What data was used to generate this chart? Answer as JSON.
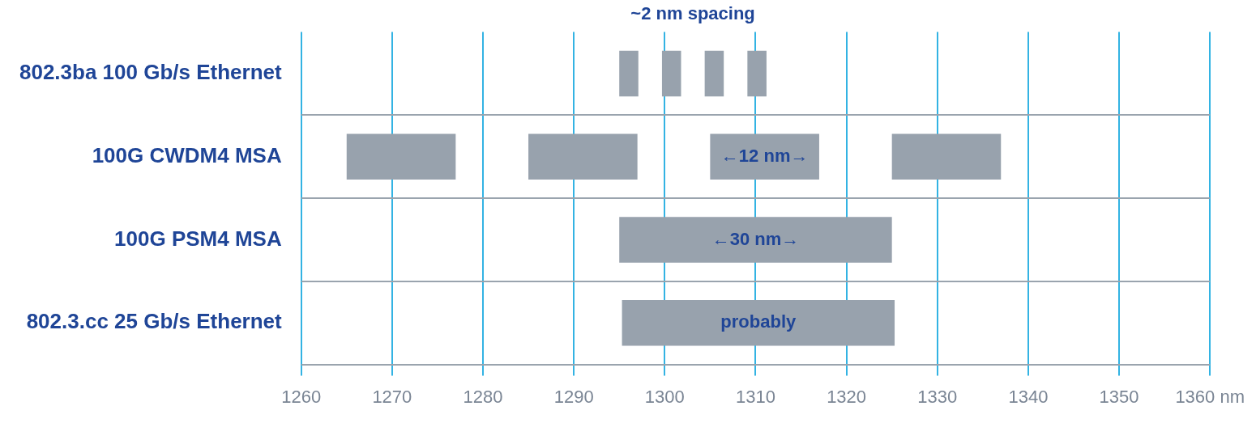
{
  "chart_data": {
    "type": "bar",
    "orientation": "horizontal",
    "categories": [
      "802.3ba 100 Gb/s Ethernet",
      "100G CWDM4 MSA",
      "100G PSM4 MSA",
      "802.3.cc 25 Gb/s Ethernet"
    ],
    "series": [
      {
        "color": "#98a2ad",
        "values": [
          2.1,
          12,
          30,
          30
        ],
        "base": [
          1295,
          1265,
          1295,
          1295.3
        ]
      },
      {
        "color": "#98a2ad",
        "values": [
          2.1,
          12,
          null,
          null
        ],
        "base": [
          1299.7,
          1285,
          null,
          null
        ]
      },
      {
        "color": "#98a2ad",
        "values": [
          2.1,
          12,
          null,
          null
        ],
        "base": [
          1304.4,
          1305,
          null,
          null
        ]
      },
      {
        "color": "#98a2ad",
        "values": [
          2.1,
          12,
          null,
          null
        ],
        "base": [
          1309.1,
          1325,
          null,
          null
        ]
      }
    ],
    "xlim": [
      1260,
      1360
    ],
    "xticks": [
      1260,
      1270,
      1280,
      1290,
      1300,
      1310,
      1320,
      1330,
      1340,
      1350,
      {
        "value": 1360,
        "label": "1360 nm"
      }
    ],
    "grid": true,
    "legend": false,
    "annotations": [
      "~2 nm spacing",
      "←12 nm→",
      "←30 nm→",
      "probably"
    ]
  }
}
